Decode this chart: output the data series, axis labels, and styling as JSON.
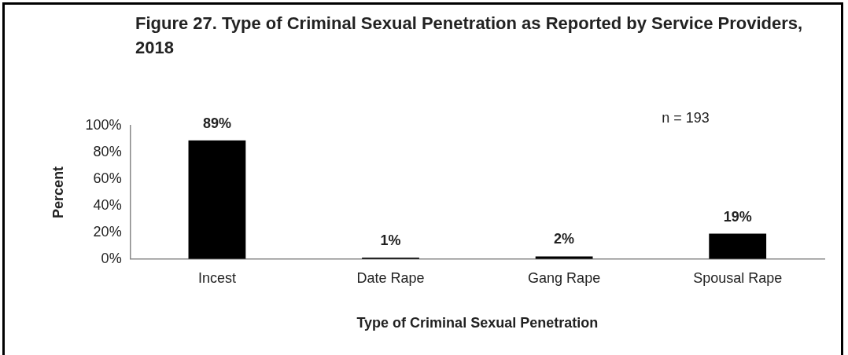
{
  "chart_data": {
    "type": "bar",
    "title": "Figure 27.  Type of Criminal Sexual Penetration as Reported by Service Providers, 2018",
    "xlabel": "Type of Criminal Sexual Penetration",
    "ylabel": "Percent",
    "categories": [
      "Incest",
      "Date Rape",
      "Gang Rape",
      "Spousal Rape"
    ],
    "values": [
      89,
      1,
      2,
      19
    ],
    "color": "#000000",
    "value_labels": [
      "89%",
      "1%",
      "2%",
      "19%"
    ],
    "ylim": [
      0,
      100
    ],
    "yticks": [
      {
        "value": 0,
        "label": "0%"
      },
      {
        "value": 20,
        "label": "20%"
      },
      {
        "value": 40,
        "label": "40%"
      },
      {
        "value": 60,
        "label": "60%"
      },
      {
        "value": 80,
        "label": "80%"
      },
      {
        "value": 100,
        "label": "100%"
      }
    ],
    "annotations": [
      "n = 193"
    ],
    "grid": false,
    "legend": false
  }
}
